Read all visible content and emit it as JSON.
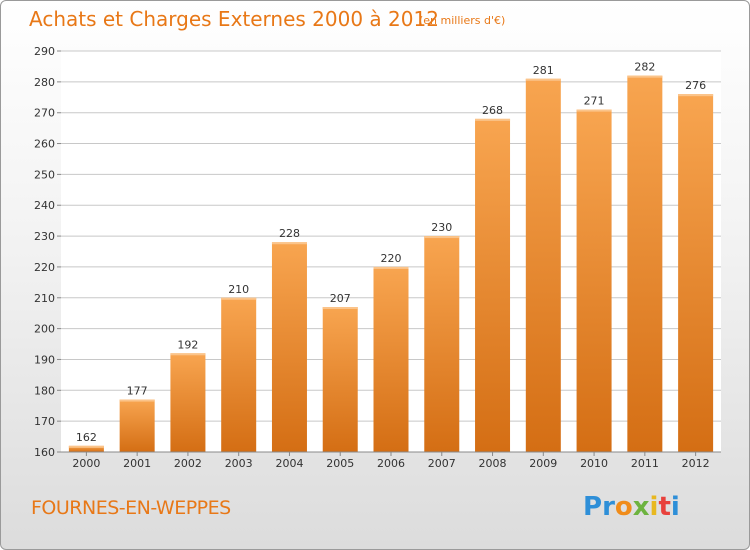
{
  "header": {
    "title": "Achats et Charges Externes 2000 à 2012",
    "subtitle": "(en milliers d'€)"
  },
  "footer": {
    "city": "FOURNES-EN-WEPPES",
    "logo_letters": [
      {
        "char": "P",
        "color": "#2e8fd8"
      },
      {
        "char": "r",
        "color": "#2e8fd8"
      },
      {
        "char": "o",
        "color": "#f08c1a"
      },
      {
        "char": "x",
        "color": "#6db33f"
      },
      {
        "char": "i",
        "color": "#e8b820"
      },
      {
        "char": "t",
        "color": "#e8413c"
      },
      {
        "char": "i",
        "color": "#2e8fd8"
      }
    ]
  },
  "colors": {
    "accent": "#e87817",
    "bar_top": "#f8a550",
    "bar_bottom": "#d46e14",
    "grid": "#c8c8c8"
  },
  "chart_data": {
    "type": "bar",
    "title": "Achats et Charges Externes 2000 à 2012",
    "subtitle": "(en milliers d'€)",
    "categories": [
      "2000",
      "2001",
      "2002",
      "2003",
      "2004",
      "2005",
      "2006",
      "2007",
      "2008",
      "2009",
      "2010",
      "2011",
      "2012"
    ],
    "values": [
      162,
      177,
      192,
      210,
      228,
      207,
      220,
      230,
      268,
      281,
      271,
      282,
      276
    ],
    "ylim": [
      160,
      290
    ],
    "yticks": [
      160,
      170,
      180,
      190,
      200,
      210,
      220,
      230,
      240,
      250,
      260,
      270,
      280,
      290
    ],
    "grid": true,
    "xlabel": "",
    "ylabel": ""
  }
}
